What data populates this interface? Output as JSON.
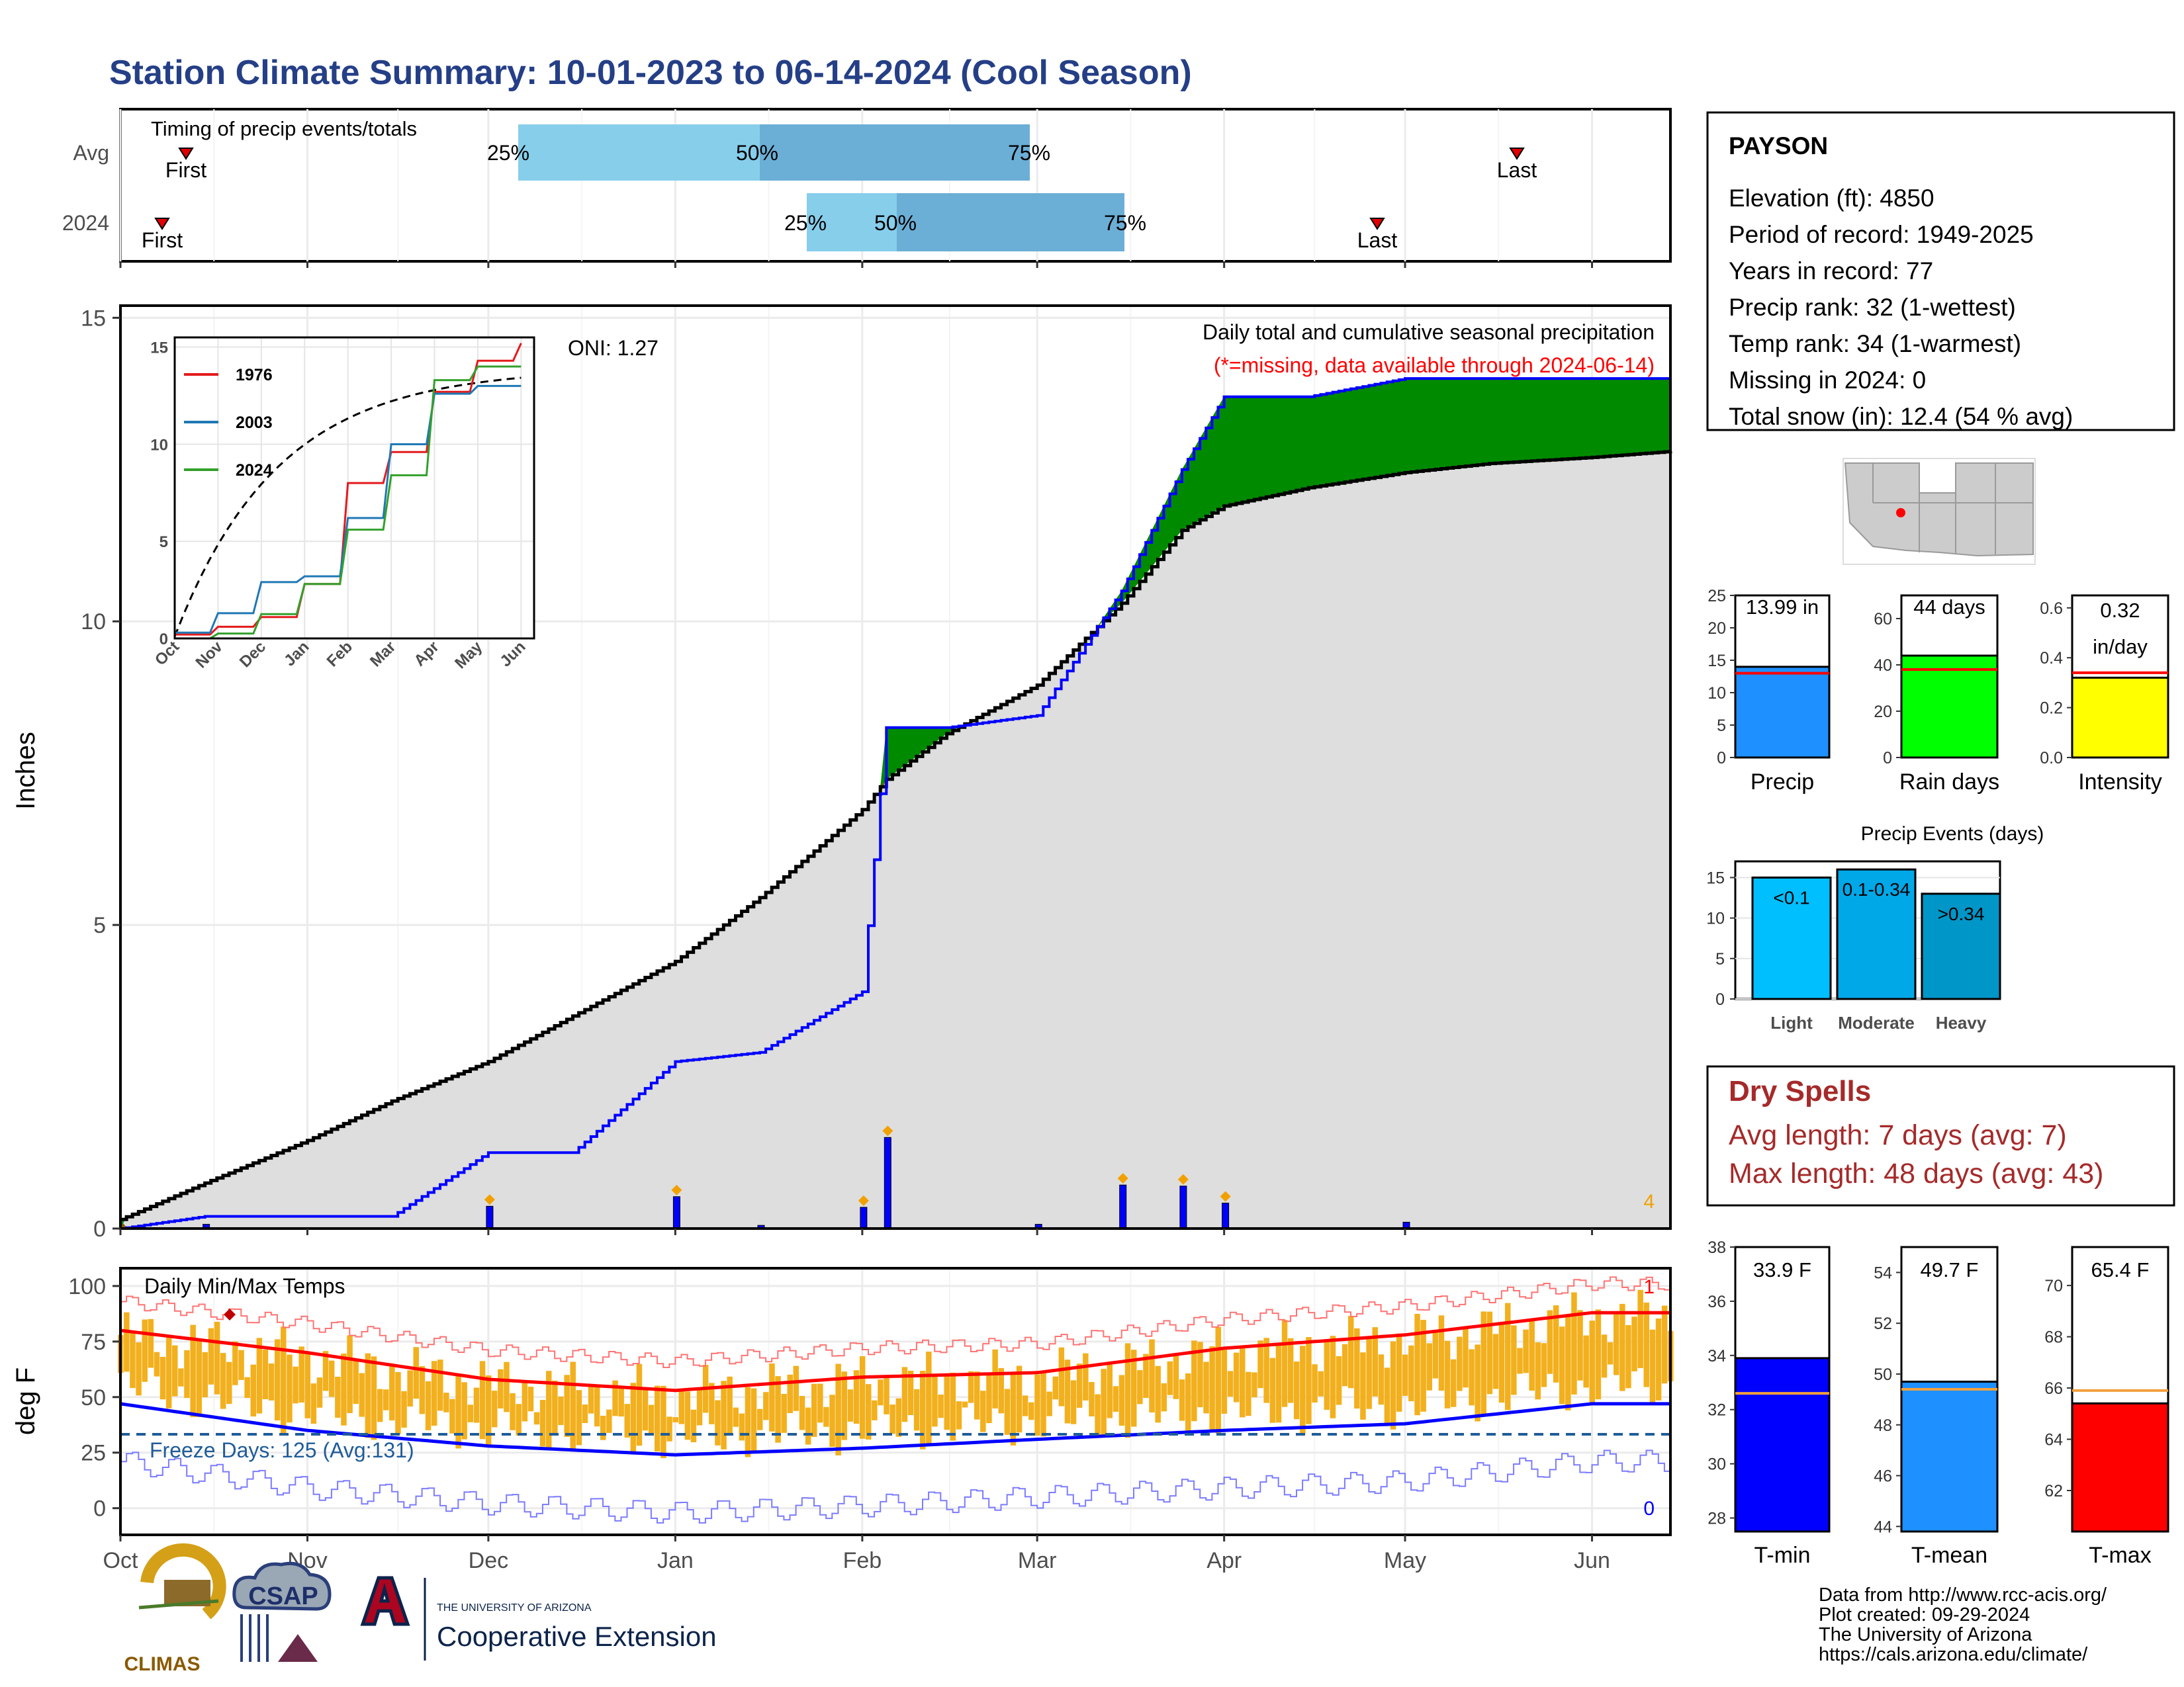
{
  "title": "Station Climate Summary: 10-01-2023 to 06-14-2024 (Cool Season)",
  "colors": {
    "title": "#253f87",
    "brown": "#8b5a00",
    "green": "#008a00",
    "gray": "#dedede",
    "blue": "#0000ff",
    "orange": "#f2b01e",
    "red": "#ff0000",
    "dry_spell": "#a52a2a"
  },
  "months": [
    "Oct",
    "Nov",
    "Dec",
    "Jan",
    "Feb",
    "Mar",
    "Apr",
    "May",
    "Jun"
  ],
  "timing": {
    "title": "Timing of precip events/totals",
    "rows": [
      {
        "label": "Avg",
        "p25": "25%",
        "p50": "50%",
        "p75": "75%",
        "first": "First",
        "last": "Last"
      },
      {
        "label": "2024",
        "p25": "25%",
        "p50": "50%",
        "p75": "75%",
        "first": "First",
        "last": "Last"
      }
    ]
  },
  "precip": {
    "ylabel": "Inches",
    "yticks": [
      "0",
      "5",
      "10",
      "15"
    ],
    "caption1": "Daily total and cumulative seasonal precipitation",
    "caption2": "(*=missing, data available through 2024-06-14)",
    "oni": "ONI: 1.27",
    "diamond_count": "4"
  },
  "inset": {
    "yticks": [
      "0",
      "5",
      "10",
      "15"
    ],
    "months": [
      "Oct",
      "Nov",
      "Dec",
      "Jan",
      "Feb",
      "Mar",
      "Apr",
      "May",
      "Jun"
    ],
    "legend": [
      {
        "name": "1976",
        "color": "#e31a1c"
      },
      {
        "name": "2003",
        "color": "#1f78b4"
      },
      {
        "name": "2024",
        "color": "#33a02c"
      }
    ]
  },
  "temps": {
    "title": "Daily Min/Max Temps",
    "ylabel": "deg F",
    "yticks": [
      "0",
      "25",
      "50",
      "75",
      "100"
    ],
    "freeze": "Freeze Days: 125 (Avg:131)",
    "count_max": "1",
    "count_min": "0"
  },
  "station": {
    "name": "PAYSON",
    "lines": [
      "Elevation (ft): 4850",
      "Period of record: 1949-2025",
      "Years in record: 77",
      "Precip rank: 32 (1-wettest)",
      "Temp rank: 34 (1-warmest)",
      "Missing in 2024: 0",
      "Total snow (in): 12.4 (54 % avg)"
    ]
  },
  "mini_bars": [
    {
      "label": "Precip",
      "value_text": "13.99 in",
      "value": 13.99,
      "avg": 13.0,
      "ymax": 25,
      "ticks": [
        "0",
        "5",
        "10",
        "15",
        "20",
        "25"
      ],
      "color": "#1e90ff"
    },
    {
      "label": "Rain days",
      "value_text": "44 days",
      "value": 44,
      "avg": 38,
      "ymax": 70,
      "ticks": [
        "0",
        "20",
        "40",
        "60"
      ],
      "color": "#00ff00"
    },
    {
      "label": "Intensity",
      "value_text": "0.32",
      "value_text2": "in/day",
      "value": 0.32,
      "avg": 0.34,
      "ymax": 0.65,
      "ticks": [
        "0.0",
        "0.2",
        "0.4",
        "0.6"
      ],
      "color": "#ffff00"
    }
  ],
  "events": {
    "title": "Precip Events (days)",
    "ticks": [
      "0",
      "5",
      "10",
      "15"
    ],
    "bars": [
      {
        "category": "Light",
        "label": "<0.1",
        "value": 15,
        "color": "#00bfff"
      },
      {
        "category": "Moderate",
        "label": "0.1-0.34",
        "value": 16,
        "color": "#00a8e8"
      },
      {
        "category": "Heavy",
        "label": ">0.34",
        "value": 13,
        "color": "#0096c7"
      }
    ]
  },
  "dry_spells": {
    "title": "Dry Spells",
    "avg": "Avg length: 7 days (avg: 7)",
    "max": "Max length: 48 days (avg: 43)"
  },
  "temp_bars": [
    {
      "label": "T-min",
      "value_text": "33.9 F",
      "value": 33.9,
      "avg": 32.6,
      "min": 27.5,
      "max": 38,
      "ticks": [
        "28",
        "30",
        "32",
        "34",
        "36",
        "38"
      ],
      "color": "#0000ff"
    },
    {
      "label": "T-mean",
      "value_text": "49.7 F",
      "value": 49.7,
      "avg": 49.4,
      "min": 43.8,
      "max": 55,
      "ticks": [
        "44",
        "46",
        "48",
        "50",
        "52",
        "54"
      ],
      "color": "#1e90ff"
    },
    {
      "label": "T-max",
      "value_text": "65.4 F",
      "value": 65.4,
      "avg": 65.9,
      "min": 60.4,
      "max": 71.5,
      "ticks": [
        "62",
        "64",
        "66",
        "68",
        "70"
      ],
      "color": "#ff0000"
    }
  ],
  "credits": [
    "Data from http://www.rcc-acis.org/",
    "Plot created: 09-29-2024",
    "The University of Arizona",
    "https://cals.arizona.edu/climate/"
  ],
  "logos": {
    "climas": "CLIMAS",
    "csap": "CSAP",
    "ua_small": "THE UNIVERSITY OF ARIZONA",
    "ua_big": "Cooperative Extension"
  },
  "chart_data": [
    {
      "type": "area",
      "title": "Daily total and cumulative seasonal precipitation",
      "ylabel": "Inches",
      "ylim": [
        0,
        15.2
      ],
      "x": [
        "2023-10-01",
        "2023-10-15",
        "2023-11-01",
        "2023-11-15",
        "2023-12-01",
        "2023-12-15",
        "2024-01-01",
        "2024-01-15",
        "2024-02-01",
        "2024-02-05",
        "2024-02-15",
        "2024-03-01",
        "2024-03-15",
        "2024-03-25",
        "2024-04-01",
        "2024-04-15",
        "2024-05-01",
        "2024-05-15",
        "2024-06-01",
        "2024-06-14"
      ],
      "series": [
        {
          "name": "avg",
          "values": [
            0.15,
            0.75,
            1.45,
            2.1,
            2.75,
            3.5,
            4.4,
            5.45,
            6.9,
            7.4,
            8.15,
            8.95,
            10.3,
            11.5,
            11.9,
            12.2,
            12.45,
            12.6,
            12.7,
            12.8
          ]
        },
        {
          "name": "2024",
          "values": [
            0.0,
            0.2,
            0.2,
            0.2,
            1.25,
            1.25,
            2.75,
            2.9,
            3.9,
            8.25,
            8.25,
            8.45,
            10.5,
            12.5,
            13.7,
            13.7,
            14.0,
            14.0,
            14.0,
            14.0
          ]
        }
      ]
    },
    {
      "type": "line",
      "title": "",
      "ylim": [
        0,
        15
      ],
      "x": [
        "Oct",
        "Nov",
        "Dec",
        "Jan",
        "Feb",
        "Mar",
        "Apr",
        "May",
        "Jun"
      ],
      "series": [
        {
          "name": "1976",
          "values": [
            0.2,
            0.6,
            1.1,
            2.8,
            8.0,
            9.6,
            12.7,
            14.3,
            15.2
          ]
        },
        {
          "name": "2003",
          "values": [
            0.3,
            1.3,
            2.9,
            3.2,
            6.2,
            10.0,
            12.6,
            13.0,
            13.0
          ]
        },
        {
          "name": "2024",
          "values": [
            0.0,
            0.25,
            1.25,
            2.8,
            5.6,
            8.4,
            13.3,
            14.0,
            14.0
          ]
        }
      ]
    },
    {
      "type": "bar",
      "title": "Daily Min/Max Temps",
      "ylim": [
        -12,
        108
      ],
      "x": [
        "Oct",
        "Nov",
        "Dec",
        "Jan",
        "Feb",
        "Mar",
        "Apr",
        "May",
        "Jun"
      ],
      "series": [
        {
          "name": "max",
          "values": [
            80,
            70,
            58,
            53,
            59,
            61,
            72,
            78,
            88
          ]
        },
        {
          "name": "min",
          "values": [
            47,
            35,
            28,
            24,
            27,
            31,
            35,
            38,
            47
          ]
        }
      ]
    },
    {
      "type": "bar",
      "title": "Precip Events (days)",
      "categories": [
        "Light",
        "Moderate",
        "Heavy"
      ],
      "values": [
        15,
        16,
        13
      ],
      "ylim": [
        0,
        17
      ]
    }
  ]
}
